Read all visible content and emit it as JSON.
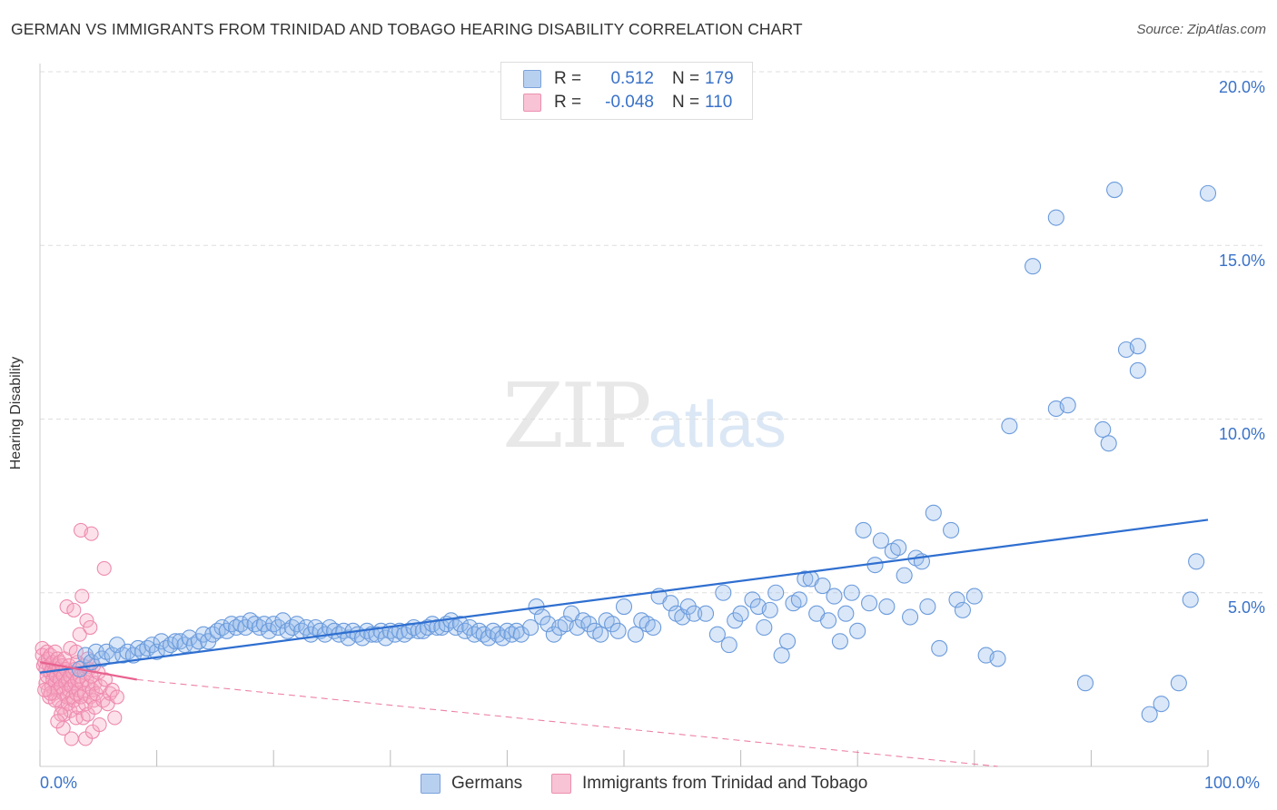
{
  "title": "GERMAN VS IMMIGRANTS FROM TRINIDAD AND TOBAGO HEARING DISABILITY CORRELATION CHART",
  "source": "Source: ZipAtlas.com",
  "watermark": {
    "zip": "ZIP",
    "atlas": "atlas"
  },
  "legend_top": [
    {
      "r_label": "R =",
      "r_value": "0.512",
      "n_label": "N =",
      "n_value": "179",
      "swatch_fill": "#b8d0f0",
      "swatch_stroke": "#7aa2dc"
    },
    {
      "r_label": "R =",
      "r_value": "-0.048",
      "n_label": "N =",
      "n_value": "110",
      "swatch_fill": "#f8c3d4",
      "swatch_stroke": "#ec8fb0"
    }
  ],
  "legend_bottom": [
    {
      "label": "Germans",
      "swatch_fill": "#b8d0f0",
      "swatch_stroke": "#7aa2dc"
    },
    {
      "label": "Immigrants from Trinidad and Tobago",
      "swatch_fill": "#f8c3d4",
      "swatch_stroke": "#ec8fb0"
    }
  ],
  "colors": {
    "blue": "#6b9bdc",
    "blue_line": "#2f6fd0",
    "pink": "#ee8aae",
    "pink_line": "#e8628f",
    "axis_text": "#3a72c8",
    "grid": "#dddddd"
  },
  "chart_data": {
    "type": "scatter",
    "title": "GERMAN VS IMMIGRANTS FROM TRINIDAD AND TOBAGO HEARING DISABILITY CORRELATION CHART",
    "xlabel": "",
    "ylabel": "Hearing Disability",
    "xlim": [
      0,
      100
    ],
    "ylim": [
      0,
      21
    ],
    "x_tick_labels": [
      "0.0%",
      "100.0%"
    ],
    "y_ticks": [
      5,
      10,
      15,
      20
    ],
    "y_tick_labels": [
      "5.0%",
      "10.0%",
      "15.0%",
      "20.0%"
    ],
    "grid": true,
    "legend_position": "top-center",
    "series": [
      {
        "name": "Germans",
        "R": 0.512,
        "N": 179,
        "trend": {
          "x": [
            0,
            100
          ],
          "y": [
            2.7,
            7.1
          ],
          "style": "solid"
        },
        "points": [
          [
            3.4,
            2.8
          ],
          [
            3.9,
            3.2
          ],
          [
            4.4,
            3.0
          ],
          [
            4.8,
            3.3
          ],
          [
            5.3,
            3.1
          ],
          [
            5.7,
            3.3
          ],
          [
            6.2,
            3.2
          ],
          [
            6.6,
            3.5
          ],
          [
            7.1,
            3.2
          ],
          [
            7.5,
            3.3
          ],
          [
            8.0,
            3.2
          ],
          [
            8.4,
            3.4
          ],
          [
            8.8,
            3.3
          ],
          [
            9.2,
            3.4
          ],
          [
            9.6,
            3.5
          ],
          [
            10.0,
            3.3
          ],
          [
            10.4,
            3.6
          ],
          [
            10.8,
            3.4
          ],
          [
            11.2,
            3.5
          ],
          [
            11.6,
            3.6
          ],
          [
            12.0,
            3.6
          ],
          [
            12.4,
            3.5
          ],
          [
            12.8,
            3.7
          ],
          [
            13.2,
            3.5
          ],
          [
            13.6,
            3.6
          ],
          [
            14.0,
            3.8
          ],
          [
            14.4,
            3.6
          ],
          [
            14.8,
            3.8
          ],
          [
            15.2,
            3.9
          ],
          [
            15.6,
            4.0
          ],
          [
            16.0,
            3.9
          ],
          [
            16.4,
            4.1
          ],
          [
            16.8,
            4.0
          ],
          [
            17.2,
            4.1
          ],
          [
            17.6,
            4.0
          ],
          [
            18.0,
            4.2
          ],
          [
            18.4,
            4.1
          ],
          [
            18.8,
            4.0
          ],
          [
            19.2,
            4.1
          ],
          [
            19.6,
            3.9
          ],
          [
            20.0,
            4.1
          ],
          [
            20.4,
            4.0
          ],
          [
            20.8,
            4.2
          ],
          [
            21.2,
            3.9
          ],
          [
            21.6,
            4.0
          ],
          [
            22.0,
            4.1
          ],
          [
            22.4,
            3.9
          ],
          [
            22.8,
            4.0
          ],
          [
            23.2,
            3.8
          ],
          [
            23.6,
            4.0
          ],
          [
            24.0,
            3.9
          ],
          [
            24.4,
            3.8
          ],
          [
            24.8,
            4.0
          ],
          [
            25.2,
            3.9
          ],
          [
            25.6,
            3.8
          ],
          [
            26.0,
            3.9
          ],
          [
            26.4,
            3.7
          ],
          [
            26.8,
            3.9
          ],
          [
            27.2,
            3.8
          ],
          [
            27.6,
            3.7
          ],
          [
            28.0,
            3.9
          ],
          [
            28.4,
            3.8
          ],
          [
            28.8,
            3.8
          ],
          [
            29.2,
            3.9
          ],
          [
            29.6,
            3.7
          ],
          [
            30.0,
            3.9
          ],
          [
            30.4,
            3.8
          ],
          [
            30.8,
            3.9
          ],
          [
            31.2,
            3.8
          ],
          [
            31.6,
            3.9
          ],
          [
            32.0,
            4.0
          ],
          [
            32.4,
            3.9
          ],
          [
            32.8,
            3.9
          ],
          [
            33.2,
            4.0
          ],
          [
            33.6,
            4.1
          ],
          [
            34.0,
            4.0
          ],
          [
            34.4,
            4.0
          ],
          [
            34.8,
            4.1
          ],
          [
            35.2,
            4.2
          ],
          [
            35.6,
            4.0
          ],
          [
            36.0,
            4.1
          ],
          [
            36.4,
            3.9
          ],
          [
            36.8,
            4.0
          ],
          [
            37.2,
            3.8
          ],
          [
            37.6,
            3.9
          ],
          [
            38.0,
            3.8
          ],
          [
            38.4,
            3.7
          ],
          [
            38.8,
            3.9
          ],
          [
            39.2,
            3.8
          ],
          [
            39.6,
            3.7
          ],
          [
            40.0,
            3.9
          ],
          [
            40.4,
            3.8
          ],
          [
            40.8,
            3.9
          ],
          [
            41.2,
            3.8
          ],
          [
            42.0,
            4.0
          ],
          [
            42.5,
            4.6
          ],
          [
            43.0,
            4.3
          ],
          [
            43.5,
            4.1
          ],
          [
            44.0,
            3.8
          ],
          [
            44.5,
            4.0
          ],
          [
            45.0,
            4.1
          ],
          [
            45.5,
            4.4
          ],
          [
            46.0,
            4.0
          ],
          [
            46.5,
            4.2
          ],
          [
            47.0,
            4.1
          ],
          [
            47.5,
            3.9
          ],
          [
            48.0,
            3.8
          ],
          [
            48.5,
            4.2
          ],
          [
            49.0,
            4.1
          ],
          [
            49.5,
            3.9
          ],
          [
            50.0,
            4.6
          ],
          [
            51.0,
            3.8
          ],
          [
            51.5,
            4.2
          ],
          [
            52.0,
            4.1
          ],
          [
            52.5,
            4.0
          ],
          [
            53.0,
            4.9
          ],
          [
            54.0,
            4.7
          ],
          [
            54.5,
            4.4
          ],
          [
            55.0,
            4.3
          ],
          [
            55.5,
            4.6
          ],
          [
            56.0,
            4.4
          ],
          [
            57.0,
            4.4
          ],
          [
            58.0,
            3.8
          ],
          [
            58.5,
            5.0
          ],
          [
            59.0,
            3.5
          ],
          [
            59.5,
            4.2
          ],
          [
            60.0,
            4.4
          ],
          [
            61.0,
            4.8
          ],
          [
            61.5,
            4.6
          ],
          [
            62.0,
            4.0
          ],
          [
            62.5,
            4.5
          ],
          [
            63.0,
            5.0
          ],
          [
            63.5,
            3.2
          ],
          [
            64.0,
            3.6
          ],
          [
            64.5,
            4.7
          ],
          [
            65.0,
            4.8
          ],
          [
            65.5,
            5.4
          ],
          [
            66.0,
            5.4
          ],
          [
            66.5,
            4.4
          ],
          [
            67.0,
            5.2
          ],
          [
            67.5,
            4.2
          ],
          [
            68.0,
            4.9
          ],
          [
            68.5,
            3.6
          ],
          [
            69.0,
            4.4
          ],
          [
            69.5,
            5.0
          ],
          [
            70.0,
            3.9
          ],
          [
            70.5,
            6.8
          ],
          [
            71.0,
            4.7
          ],
          [
            71.5,
            5.8
          ],
          [
            72.0,
            6.5
          ],
          [
            72.5,
            4.6
          ],
          [
            73.0,
            6.2
          ],
          [
            73.5,
            6.3
          ],
          [
            74.0,
            5.5
          ],
          [
            74.5,
            4.3
          ],
          [
            75.0,
            6.0
          ],
          [
            75.5,
            5.9
          ],
          [
            76.0,
            4.6
          ],
          [
            76.5,
            7.3
          ],
          [
            77.0,
            3.4
          ],
          [
            78.0,
            6.8
          ],
          [
            78.5,
            4.8
          ],
          [
            79.0,
            4.5
          ],
          [
            80.0,
            4.9
          ],
          [
            81.0,
            3.2
          ],
          [
            82.0,
            3.1
          ],
          [
            83.0,
            9.8
          ],
          [
            85.0,
            14.4
          ],
          [
            87.0,
            15.8
          ],
          [
            87.0,
            10.3
          ],
          [
            88.0,
            10.4
          ],
          [
            89.5,
            2.4
          ],
          [
            91.0,
            9.7
          ],
          [
            91.5,
            9.3
          ],
          [
            92.0,
            16.6
          ],
          [
            93.0,
            12.0
          ],
          [
            94.0,
            12.1
          ],
          [
            94.0,
            11.4
          ],
          [
            95.0,
            1.5
          ],
          [
            96.0,
            1.8
          ],
          [
            97.5,
            2.4
          ],
          [
            98.5,
            4.8
          ],
          [
            99.0,
            5.9
          ],
          [
            100.0,
            16.5
          ]
        ]
      },
      {
        "name": "Immigrants from Trinidad and Tobago",
        "R": -0.048,
        "N": 110,
        "trend": {
          "x": [
            0,
            8.3
          ],
          "y": [
            3.0,
            2.5
          ],
          "style": "solid"
        },
        "trend_extension": {
          "x": [
            8.3,
            82.0
          ],
          "y": [
            2.5,
            0.0
          ],
          "style": "dashed"
        },
        "points": [
          [
            0.2,
            3.4
          ],
          [
            0.2,
            3.2
          ],
          [
            0.3,
            2.9
          ],
          [
            0.4,
            3.0
          ],
          [
            0.5,
            2.8
          ],
          [
            0.5,
            2.4
          ],
          [
            0.6,
            3.3
          ],
          [
            0.6,
            2.6
          ],
          [
            0.7,
            2.2
          ],
          [
            0.7,
            3.1
          ],
          [
            0.8,
            2.0
          ],
          [
            0.8,
            2.9
          ],
          [
            0.9,
            2.7
          ],
          [
            0.9,
            3.2
          ],
          [
            1.0,
            2.3
          ],
          [
            1.0,
            2.8
          ],
          [
            1.1,
            2.5
          ],
          [
            1.1,
            3.0
          ],
          [
            1.2,
            2.1
          ],
          [
            1.2,
            2.7
          ],
          [
            1.3,
            3.3
          ],
          [
            1.3,
            2.4
          ],
          [
            1.4,
            2.9
          ],
          [
            1.4,
            2.6
          ],
          [
            1.5,
            3.1
          ],
          [
            1.5,
            2.2
          ],
          [
            1.6,
            2.8
          ],
          [
            1.6,
            1.9
          ],
          [
            1.7,
            2.5
          ],
          [
            1.7,
            3.0
          ],
          [
            1.8,
            2.7
          ],
          [
            1.8,
            2.3
          ],
          [
            1.9,
            1.7
          ],
          [
            1.9,
            2.9
          ],
          [
            2.0,
            2.1
          ],
          [
            2.0,
            2.6
          ],
          [
            2.1,
            3.1
          ],
          [
            2.1,
            1.5
          ],
          [
            2.2,
            2.4
          ],
          [
            2.2,
            2.8
          ],
          [
            2.3,
            4.6
          ],
          [
            2.3,
            2.0
          ],
          [
            2.4,
            2.5
          ],
          [
            2.4,
            1.8
          ],
          [
            2.5,
            2.9
          ],
          [
            2.5,
            2.2
          ],
          [
            2.6,
            2.6
          ],
          [
            2.6,
            1.6
          ],
          [
            2.7,
            0.8
          ],
          [
            2.7,
            2.3
          ],
          [
            2.8,
            2.7
          ],
          [
            2.8,
            2.0
          ],
          [
            2.9,
            4.5
          ],
          [
            2.9,
            1.9
          ],
          [
            3.0,
            2.4
          ],
          [
            3.0,
            2.8
          ],
          [
            3.1,
            2.1
          ],
          [
            3.1,
            1.4
          ],
          [
            3.2,
            2.5
          ],
          [
            3.2,
            3.0
          ],
          [
            3.3,
            2.2
          ],
          [
            3.3,
            1.7
          ],
          [
            3.4,
            3.8
          ],
          [
            3.4,
            2.6
          ],
          [
            3.5,
            6.8
          ],
          [
            3.5,
            2.0
          ],
          [
            3.6,
            4.9
          ],
          [
            3.6,
            2.4
          ],
          [
            3.7,
            1.4
          ],
          [
            3.7,
            2.9
          ],
          [
            3.8,
            2.1
          ],
          [
            3.8,
            2.7
          ],
          [
            3.9,
            0.8
          ],
          [
            3.9,
            1.8
          ],
          [
            4.0,
            4.2
          ],
          [
            4.0,
            2.5
          ],
          [
            4.1,
            3.1
          ],
          [
            4.1,
            1.5
          ],
          [
            4.2,
            2.3
          ],
          [
            4.2,
            2.8
          ],
          [
            4.3,
            4.0
          ],
          [
            4.3,
            2.0
          ],
          [
            4.4,
            6.7
          ],
          [
            4.4,
            2.6
          ],
          [
            4.5,
            1.0
          ],
          [
            4.5,
            2.2
          ],
          [
            4.6,
            1.9
          ],
          [
            4.6,
            2.9
          ],
          [
            4.7,
            2.4
          ],
          [
            4.7,
            1.7
          ],
          [
            4.8,
            2.1
          ],
          [
            5.0,
            2.7
          ],
          [
            5.1,
            1.2
          ],
          [
            5.2,
            2.3
          ],
          [
            5.4,
            1.9
          ],
          [
            5.5,
            5.7
          ],
          [
            5.6,
            2.5
          ],
          [
            5.8,
            1.8
          ],
          [
            6.0,
            2.1
          ],
          [
            6.2,
            2.2
          ],
          [
            6.4,
            1.4
          ],
          [
            6.6,
            2.0
          ],
          [
            1.3,
            1.9
          ],
          [
            0.9,
            2.1
          ],
          [
            2.6,
            3.4
          ],
          [
            1.8,
            1.5
          ],
          [
            3.1,
            3.3
          ],
          [
            0.4,
            2.2
          ],
          [
            2.0,
            1.1
          ],
          [
            1.5,
            1.3
          ]
        ]
      }
    ]
  }
}
